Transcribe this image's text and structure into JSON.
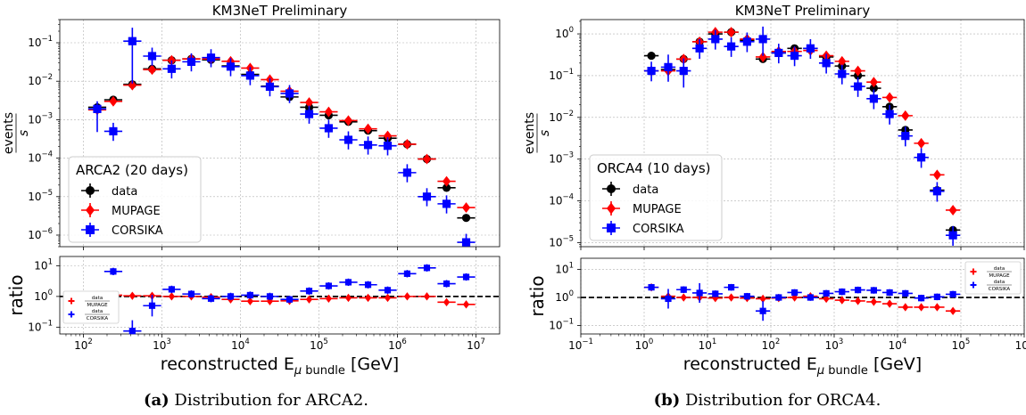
{
  "colors": {
    "data": "#000000",
    "mupage": "#ff0000",
    "corsika": "#0000ff"
  },
  "chart_data": [
    {
      "panel": "a",
      "type": "scatter",
      "title": "KM3NeT Preliminary",
      "caption_prefix": "(a)",
      "caption_text": " Distribution for ARCA2.",
      "ylabel_num": "events",
      "ylabel_den": "s",
      "ratio_ylabel": "ratio",
      "xlabel_prefix": "reconstructed E",
      "xlabel_sub_mu": "μ",
      "xlabel_sub_word": " bundle",
      "xlabel_unit": " [GeV]",
      "x_scale": "log",
      "y_scale": "log",
      "xlim": [
        50,
        20000000
      ],
      "ylim": [
        5e-07,
        0.4
      ],
      "ratio_ylim": [
        0.06,
        20
      ],
      "grid": true,
      "legend": {
        "title": "ARCA2 (20 days)",
        "placement": "lower-left",
        "entries": [
          "data",
          "MUPAGE",
          "CORSIKA"
        ]
      },
      "ratio_legend": {
        "placement": "lower-left",
        "entries": [
          {
            "num": "data",
            "den": "MUPAGE"
          },
          {
            "num": "data",
            "den": "CORSIKA"
          }
        ]
      },
      "xticks": [
        {
          "value": 100,
          "exp": "2"
        },
        {
          "value": 1000,
          "exp": "3"
        },
        {
          "value": 10000,
          "exp": "4"
        },
        {
          "value": 100000,
          "exp": "5"
        },
        {
          "value": 1000000,
          "exp": "6"
        },
        {
          "value": 10000000,
          "exp": "7"
        }
      ],
      "yticks": [
        {
          "value": 0.1,
          "exp": "−1"
        },
        {
          "value": 0.01,
          "exp": "−2"
        },
        {
          "value": 0.001,
          "exp": "−3"
        },
        {
          "value": 0.0001,
          "exp": "−4"
        },
        {
          "value": 1e-05,
          "exp": "−5"
        },
        {
          "value": 1e-06,
          "exp": "−6"
        }
      ],
      "ratio_yticks": [
        {
          "value": 10,
          "exp": "1"
        },
        {
          "value": 1,
          "exp": "0"
        },
        {
          "value": 0.1,
          "exp": "−1"
        }
      ],
      "series": [
        {
          "name": "data",
          "x": [
            150,
            240,
            420,
            750,
            1330,
            2370,
            4220,
            7500,
            13300,
            23700,
            42200,
            75000,
            133000,
            237000,
            422000,
            750000,
            1330000,
            2370000,
            4220000,
            7500000
          ],
          "y": [
            0.0021,
            0.0033,
            0.0083,
            0.021,
            0.035,
            0.038,
            0.036,
            0.025,
            0.015,
            0.0074,
            0.0039,
            0.0021,
            0.0013,
            0.00088,
            0.00052,
            0.00033,
            0.00023,
            9.5e-05,
            1.7e-05,
            2.8e-06
          ]
        },
        {
          "name": "MUPAGE",
          "x": [
            150,
            240,
            420,
            750,
            1330,
            2370,
            4220,
            7500,
            13300,
            23700,
            42200,
            75000,
            133000,
            237000,
            422000,
            750000,
            1330000,
            2370000,
            4220000,
            7500000
          ],
          "y": [
            0.0018,
            0.003,
            0.0079,
            0.02,
            0.035,
            0.038,
            0.038,
            0.033,
            0.022,
            0.011,
            0.0055,
            0.0028,
            0.0016,
            0.00095,
            0.00058,
            0.00038,
            0.00023,
            9.5e-05,
            2.5e-05,
            5.2e-06
          ]
        },
        {
          "name": "CORSIKA",
          "x": [
            150,
            240,
            420,
            750,
            1330,
            2370,
            4220,
            7500,
            13300,
            23700,
            42200,
            75000,
            133000,
            237000,
            422000,
            750000,
            1330000,
            2370000,
            4220000,
            7500000
          ],
          "y": [
            0.0019,
            0.0005,
            0.11,
            0.045,
            0.021,
            0.032,
            0.041,
            0.024,
            0.014,
            0.0072,
            0.0048,
            0.0014,
            0.0006,
            0.0003,
            0.00022,
            0.00021,
            4.2e-05,
            1e-05,
            6.5e-06,
            6.5e-07
          ]
        }
      ],
      "ratio_series": [
        {
          "name": "data/MUPAGE",
          "x": [
            150,
            240,
            420,
            750,
            1330,
            2370,
            4220,
            7500,
            13300,
            23700,
            42200,
            75000,
            133000,
            237000,
            422000,
            750000,
            1330000,
            2370000,
            4220000,
            7500000
          ],
          "y": [
            1.1,
            1.1,
            1.05,
            1.05,
            1.0,
            1.0,
            0.95,
            0.8,
            0.7,
            0.7,
            0.72,
            0.8,
            0.85,
            0.9,
            0.9,
            0.9,
            1.0,
            1.0,
            0.65,
            0.55
          ]
        },
        {
          "name": "data/CORSIKA",
          "x": [
            150,
            240,
            420,
            750,
            1330,
            2370,
            4220,
            7500,
            13300,
            23700,
            42200,
            75000,
            133000,
            237000,
            422000,
            750000,
            1330000,
            2370000,
            4220000,
            7500000
          ],
          "y": [
            1.1,
            6.5,
            0.075,
            0.5,
            1.7,
            1.2,
            0.85,
            1.0,
            1.1,
            1.0,
            0.8,
            1.5,
            2.2,
            2.9,
            2.4,
            1.6,
            5.5,
            8.5,
            2.6,
            4.3
          ]
        }
      ]
    },
    {
      "panel": "b",
      "type": "scatter",
      "title": "KM3NeT Preliminary",
      "caption_prefix": "(b)",
      "caption_text": " Distribution for ORCA4.",
      "ylabel_num": "events",
      "ylabel_den": "s",
      "ratio_ylabel": "ratio",
      "xlabel_prefix": "reconstructed E",
      "xlabel_sub_mu": "μ",
      "xlabel_sub_word": " bundle",
      "xlabel_unit": " [GeV]",
      "x_scale": "log",
      "y_scale": "log",
      "xlim": [
        0.1,
        1000000
      ],
      "ylim": [
        8e-06,
        2.2
      ],
      "ratio_ylim": [
        0.05,
        25
      ],
      "grid": true,
      "legend": {
        "title": "ORCA4 (10 days)",
        "placement": "lower-left",
        "entries": [
          "data",
          "MUPAGE",
          "CORSIKA"
        ]
      },
      "ratio_legend": {
        "placement": "upper-right",
        "entries": [
          {
            "num": "data",
            "den": "MUPAGE"
          },
          {
            "num": "data",
            "den": "CORSIKA"
          }
        ]
      },
      "xticks": [
        {
          "value": 0.1,
          "exp": "−1"
        },
        {
          "value": 1,
          "exp": "0"
        },
        {
          "value": 10,
          "exp": "1"
        },
        {
          "value": 100,
          "exp": "2"
        },
        {
          "value": 1000,
          "exp": "3"
        },
        {
          "value": 10000,
          "exp": "4"
        },
        {
          "value": 100000,
          "exp": "5"
        },
        {
          "value": 1000000,
          "exp": "6"
        }
      ],
      "yticks": [
        {
          "value": 1,
          "exp": "0"
        },
        {
          "value": 0.1,
          "exp": "−1"
        },
        {
          "value": 0.01,
          "exp": "−2"
        },
        {
          "value": 0.001,
          "exp": "−3"
        },
        {
          "value": 0.0001,
          "exp": "−4"
        },
        {
          "value": 1e-05,
          "exp": "−5"
        }
      ],
      "ratio_yticks": [
        {
          "value": 10,
          "exp": "1"
        },
        {
          "value": 1,
          "exp": "0"
        },
        {
          "value": 0.1,
          "exp": "−1"
        }
      ],
      "series": [
        {
          "name": "data",
          "x": [
            1.3,
            2.4,
            4.2,
            7.5,
            13.3,
            23.7,
            42.2,
            75,
            133,
            237,
            422,
            750,
            1330,
            2370,
            4220,
            7500,
            13300,
            23700,
            42200,
            75000
          ],
          "y": [
            0.3,
            0.14,
            0.25,
            0.65,
            1.0,
            1.1,
            0.7,
            0.25,
            0.35,
            0.45,
            0.45,
            0.28,
            0.17,
            0.1,
            0.05,
            0.018,
            0.005,
            0.0011,
            0.00018,
            2e-05
          ]
        },
        {
          "name": "MUPAGE",
          "x": [
            1.3,
            2.4,
            4.2,
            7.5,
            13.3,
            23.7,
            42.2,
            75,
            133,
            237,
            422,
            750,
            1330,
            2370,
            4220,
            7500,
            13300,
            23700,
            42200,
            75000
          ],
          "y": [
            0.13,
            0.13,
            0.25,
            0.65,
            1.1,
            1.1,
            0.75,
            0.28,
            0.38,
            0.38,
            0.4,
            0.3,
            0.22,
            0.13,
            0.07,
            0.03,
            0.011,
            0.0024,
            0.00042,
            6e-05
          ]
        },
        {
          "name": "CORSIKA",
          "x": [
            1.3,
            2.4,
            4.2,
            7.5,
            13.3,
            23.7,
            42.2,
            75,
            133,
            237,
            422,
            750,
            1330,
            2370,
            4220,
            7500,
            13300,
            23700,
            42200,
            75000
          ],
          "y": [
            0.13,
            0.16,
            0.13,
            0.45,
            0.75,
            0.5,
            0.65,
            0.75,
            0.35,
            0.3,
            0.45,
            0.2,
            0.11,
            0.055,
            0.028,
            0.012,
            0.0036,
            0.0011,
            0.00017,
            1.5e-05
          ]
        }
      ],
      "ratio_series": [
        {
          "name": "data/MUPAGE",
          "x": [
            1.3,
            2.4,
            4.2,
            7.5,
            13.3,
            23.7,
            42.2,
            75,
            133,
            237,
            422,
            750,
            1330,
            2370,
            4220,
            7500,
            13300,
            23700,
            42200,
            75000
          ],
          "y": [
            2.3,
            1.1,
            1.0,
            1.0,
            0.95,
            1.0,
            0.95,
            0.9,
            0.95,
            1.0,
            1.1,
            0.9,
            0.8,
            0.75,
            0.7,
            0.6,
            0.45,
            0.45,
            0.45,
            0.33
          ]
        },
        {
          "name": "data/CORSIKA",
          "x": [
            1.3,
            2.4,
            4.2,
            7.5,
            13.3,
            23.7,
            42.2,
            75,
            133,
            237,
            422,
            750,
            1330,
            2370,
            4220,
            7500,
            13300,
            23700,
            42200,
            75000
          ],
          "y": [
            2.3,
            0.9,
            1.9,
            1.45,
            1.35,
            2.3,
            1.1,
            0.33,
            1.0,
            1.5,
            1.0,
            1.4,
            1.6,
            1.85,
            1.8,
            1.5,
            1.4,
            0.95,
            1.05,
            1.3
          ]
        }
      ]
    }
  ]
}
